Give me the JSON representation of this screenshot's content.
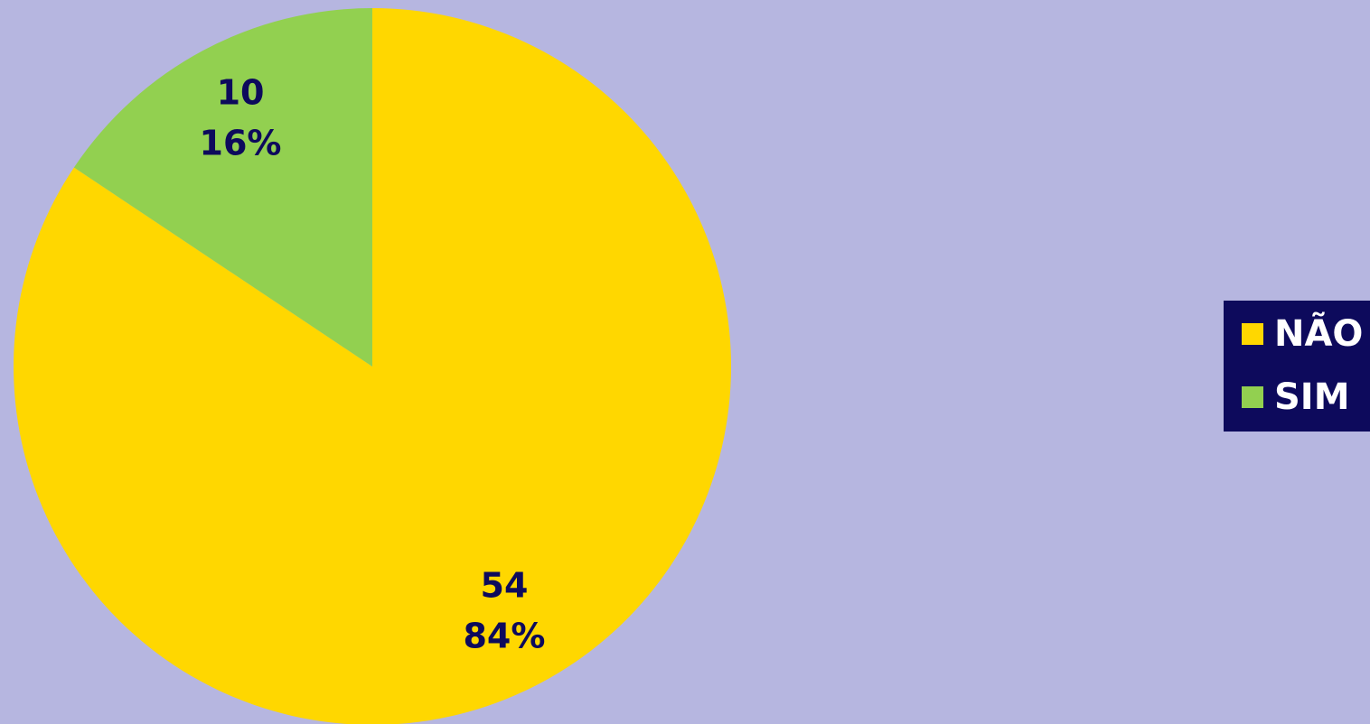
{
  "chart_data": {
    "type": "pie",
    "categories": [
      "NÃO",
      "SIM"
    ],
    "values": [
      54,
      10
    ],
    "percent_labels": [
      "84%",
      "16%"
    ],
    "colors": [
      "#ffd700",
      "#92d050"
    ],
    "legend": "right"
  }
}
